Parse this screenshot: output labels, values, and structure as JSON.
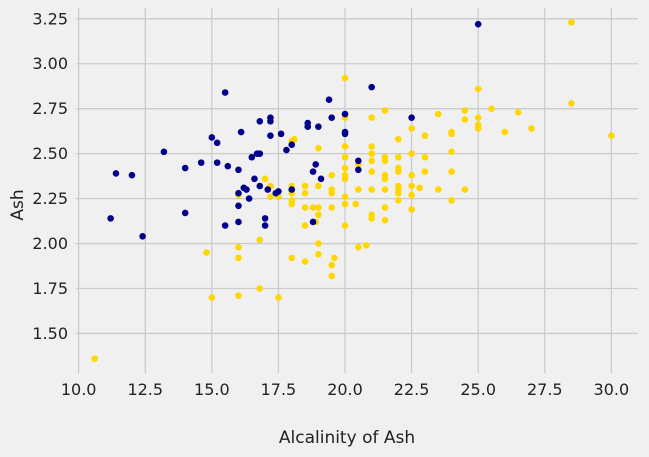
{
  "chart_data": {
    "type": "scatter",
    "title": "",
    "xlabel": "Alcalinity of Ash",
    "ylabel": "Ash",
    "xlim": [
      9.9,
      31.0
    ],
    "ylim": [
      1.28,
      3.31
    ],
    "x_ticks": [
      10.0,
      12.5,
      15.0,
      17.5,
      20.0,
      22.5,
      25.0,
      27.5,
      30.0
    ],
    "y_ticks": [
      1.5,
      1.75,
      2.0,
      2.25,
      2.5,
      2.75,
      3.0,
      3.25
    ],
    "grid": true,
    "legend": "none",
    "colors": {
      "background": "#f0f0f0",
      "grid": "#cbcbcb",
      "series_a": "#00008b",
      "series_b": "#ffd700"
    },
    "series": [
      {
        "color": "#00008b",
        "points": [
          [
            11.2,
            2.14
          ],
          [
            11.4,
            2.39
          ],
          [
            12.0,
            2.38
          ],
          [
            12.4,
            2.04
          ],
          [
            13.2,
            2.51
          ],
          [
            14.0,
            2.42
          ],
          [
            14.0,
            2.17
          ],
          [
            14.6,
            2.45
          ],
          [
            15.0,
            2.59
          ],
          [
            15.2,
            2.45
          ],
          [
            15.2,
            2.56
          ],
          [
            15.5,
            2.84
          ],
          [
            15.6,
            2.43
          ],
          [
            15.5,
            2.1
          ],
          [
            16.0,
            2.41
          ],
          [
            16.0,
            2.28
          ],
          [
            16.0,
            2.21
          ],
          [
            16.0,
            2.12
          ],
          [
            16.1,
            2.62
          ],
          [
            16.3,
            2.3
          ],
          [
            16.2,
            2.31
          ],
          [
            16.5,
            2.48
          ],
          [
            16.4,
            2.25
          ],
          [
            16.6,
            2.36
          ],
          [
            16.7,
            2.5
          ],
          [
            16.8,
            2.68
          ],
          [
            16.8,
            2.5
          ],
          [
            16.8,
            2.32
          ],
          [
            17.0,
            2.14
          ],
          [
            17.0,
            2.1
          ],
          [
            17.1,
            2.3
          ],
          [
            17.2,
            2.68
          ],
          [
            17.2,
            2.7
          ],
          [
            17.2,
            2.6
          ],
          [
            17.5,
            2.29
          ],
          [
            17.4,
            2.28
          ],
          [
            17.6,
            2.61
          ],
          [
            17.8,
            2.52
          ],
          [
            18.0,
            2.55
          ],
          [
            18.0,
            2.3
          ],
          [
            18.6,
            2.67
          ],
          [
            18.6,
            2.65
          ],
          [
            18.8,
            2.12
          ],
          [
            18.8,
            2.4
          ],
          [
            18.9,
            2.44
          ],
          [
            19.0,
            2.65
          ],
          [
            19.1,
            2.36
          ],
          [
            19.4,
            2.8
          ],
          [
            19.5,
            2.7
          ],
          [
            20.0,
            2.72
          ],
          [
            20.0,
            2.61
          ],
          [
            20.0,
            2.62
          ],
          [
            20.5,
            2.41
          ],
          [
            20.5,
            2.46
          ],
          [
            21.0,
            2.87
          ],
          [
            22.5,
            2.7
          ],
          [
            25.0,
            3.22
          ]
        ]
      },
      {
        "color": "#ffd700",
        "points": [
          [
            10.6,
            1.36
          ],
          [
            14.8,
            1.95
          ],
          [
            15.0,
            1.7
          ],
          [
            16.0,
            1.71
          ],
          [
            16.0,
            1.92
          ],
          [
            16.0,
            1.98
          ],
          [
            16.0,
            2.27
          ],
          [
            16.8,
            1.75
          ],
          [
            16.8,
            2.02
          ],
          [
            17.0,
            2.36
          ],
          [
            17.2,
            2.32
          ],
          [
            17.2,
            2.26
          ],
          [
            17.5,
            1.7
          ],
          [
            17.5,
            2.26
          ],
          [
            18.0,
            1.92
          ],
          [
            18.0,
            2.22
          ],
          [
            18.0,
            2.24
          ],
          [
            18.0,
            2.28
          ],
          [
            18.0,
            2.32
          ],
          [
            18.0,
            2.57
          ],
          [
            18.1,
            2.58
          ],
          [
            18.5,
            1.9
          ],
          [
            18.5,
            2.1
          ],
          [
            18.5,
            2.2
          ],
          [
            18.5,
            2.28
          ],
          [
            18.5,
            2.32
          ],
          [
            18.8,
            2.2
          ],
          [
            18.9,
            2.12
          ],
          [
            19.0,
            1.94
          ],
          [
            19.0,
            2.0
          ],
          [
            19.0,
            2.16
          ],
          [
            19.0,
            2.2
          ],
          [
            19.0,
            2.32
          ],
          [
            19.0,
            2.53
          ],
          [
            19.5,
            1.82
          ],
          [
            19.5,
            1.88
          ],
          [
            19.5,
            2.2
          ],
          [
            19.5,
            2.28
          ],
          [
            19.5,
            2.3
          ],
          [
            19.5,
            2.38
          ],
          [
            19.6,
            1.92
          ],
          [
            20.0,
            2.1
          ],
          [
            20.0,
            2.22
          ],
          [
            20.0,
            2.26
          ],
          [
            20.0,
            2.36
          ],
          [
            20.0,
            2.38
          ],
          [
            20.0,
            2.42
          ],
          [
            20.0,
            2.48
          ],
          [
            20.0,
            2.54
          ],
          [
            20.0,
            2.7
          ],
          [
            20.0,
            2.92
          ],
          [
            20.4,
            2.22
          ],
          [
            20.5,
            1.98
          ],
          [
            20.5,
            2.3
          ],
          [
            20.5,
            2.44
          ],
          [
            20.8,
            1.99
          ],
          [
            21.0,
            2.14
          ],
          [
            21.0,
            2.16
          ],
          [
            21.0,
            2.3
          ],
          [
            21.0,
            2.4
          ],
          [
            21.0,
            2.46
          ],
          [
            21.0,
            2.5
          ],
          [
            21.0,
            2.54
          ],
          [
            21.0,
            2.7
          ],
          [
            21.5,
            2.13
          ],
          [
            21.5,
            2.2
          ],
          [
            21.5,
            2.3
          ],
          [
            21.5,
            2.36
          ],
          [
            21.5,
            2.38
          ],
          [
            21.5,
            2.46
          ],
          [
            21.5,
            2.48
          ],
          [
            21.5,
            2.74
          ],
          [
            22.0,
            2.24
          ],
          [
            22.0,
            2.28
          ],
          [
            22.0,
            2.3
          ],
          [
            22.0,
            2.32
          ],
          [
            22.0,
            2.4
          ],
          [
            22.0,
            2.42
          ],
          [
            22.0,
            2.48
          ],
          [
            22.0,
            2.58
          ],
          [
            22.5,
            2.19
          ],
          [
            22.5,
            2.27
          ],
          [
            22.5,
            2.32
          ],
          [
            22.5,
            2.38
          ],
          [
            22.5,
            2.5
          ],
          [
            22.5,
            2.64
          ],
          [
            22.8,
            2.31
          ],
          [
            23.0,
            2.4
          ],
          [
            23.0,
            2.48
          ],
          [
            23.0,
            2.6
          ],
          [
            23.5,
            2.72
          ],
          [
            23.5,
            2.3
          ],
          [
            24.0,
            2.24
          ],
          [
            24.0,
            2.4
          ],
          [
            24.0,
            2.51
          ],
          [
            24.0,
            2.61
          ],
          [
            24.0,
            2.62
          ],
          [
            24.5,
            2.3
          ],
          [
            24.5,
            2.69
          ],
          [
            24.5,
            2.74
          ],
          [
            25.0,
            2.64
          ],
          [
            25.0,
            2.66
          ],
          [
            25.0,
            2.7
          ],
          [
            25.0,
            2.86
          ],
          [
            25.5,
            2.75
          ],
          [
            26.0,
            2.62
          ],
          [
            26.5,
            2.73
          ],
          [
            27.0,
            2.64
          ],
          [
            28.5,
            2.78
          ],
          [
            28.5,
            3.23
          ],
          [
            30.0,
            2.6
          ]
        ]
      }
    ]
  }
}
